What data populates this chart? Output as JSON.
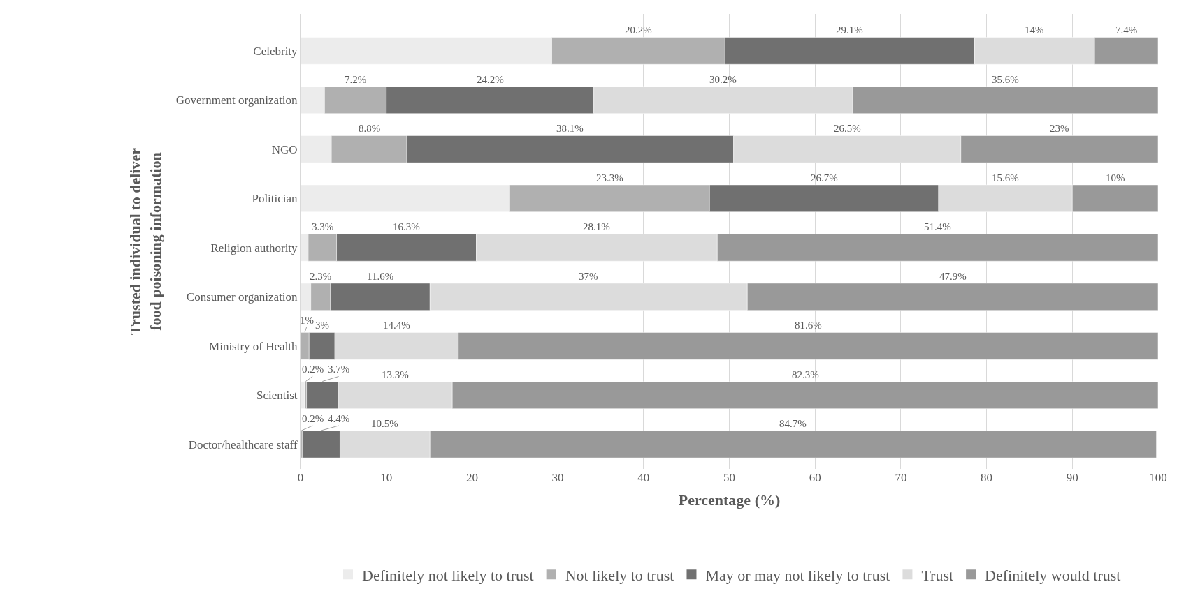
{
  "chart_data": {
    "type": "bar",
    "orientation": "horizontal",
    "stacked": true,
    "xlabel": "Percentage (%)",
    "ylabel": "Trusted individual to deliver food poisoning information",
    "categories": [
      "Celebrity",
      "Government organization",
      "NGO",
      "Politician",
      "Religion authority",
      "Consumer organization",
      "Ministry of Health",
      "Scientist",
      "Doctor/healthcare staff"
    ],
    "series": [
      {
        "name": "Definitely not likely to trust",
        "color": "#ececec",
        "values": [
          29.3,
          2.8,
          3.6,
          24.4,
          0.9,
          1.2,
          null,
          0.5,
          null
        ],
        "value_labels": [
          null,
          null,
          null,
          null,
          null,
          null,
          null,
          null,
          null
        ]
      },
      {
        "name": "Not likely to trust",
        "color": "#b0b0b0",
        "values": [
          20.2,
          7.2,
          8.8,
          23.3,
          3.3,
          2.3,
          1,
          0.2,
          0.2
        ],
        "value_labels": [
          "20.2%",
          "7.2%",
          "8.8%",
          "23.3%",
          "3.3%",
          "2.3%",
          "1%",
          "0.2%",
          "0.2%"
        ]
      },
      {
        "name": "May or may not likely to trust",
        "color": "#707070",
        "values": [
          29.1,
          24.2,
          38.1,
          26.7,
          16.3,
          11.6,
          3,
          3.7,
          4.4
        ],
        "value_labels": [
          "29.1%",
          "24.2%",
          "38.1%",
          "26.7%",
          "16.3%",
          "11.6%",
          "3%",
          "3.7%",
          "4.4%"
        ]
      },
      {
        "name": "Trust",
        "color": "#dcdcdc",
        "values": [
          14,
          30.2,
          26.5,
          15.6,
          28.1,
          37,
          14.4,
          13.3,
          10.5
        ],
        "value_labels": [
          "14%",
          "30.2%",
          "26.5%",
          "15.6%",
          "28.1%",
          "37%",
          "14.4%",
          "13.3%",
          "10.5%"
        ]
      },
      {
        "name": "Definitely would trust",
        "color": "#999999",
        "values": [
          7.4,
          35.6,
          23,
          10,
          51.4,
          47.9,
          81.6,
          82.3,
          84.7
        ],
        "value_labels": [
          "7.4%",
          "35.6%",
          "23%",
          "10%",
          "51.4%",
          "47.9%",
          "81.6%",
          "82.3%",
          "84.7%"
        ]
      }
    ],
    "xlim": [
      0,
      100
    ],
    "xticks": [
      0,
      10,
      20,
      30,
      40,
      50,
      60,
      70,
      80,
      90,
      100
    ],
    "grid": "x",
    "legend": "bottom"
  }
}
